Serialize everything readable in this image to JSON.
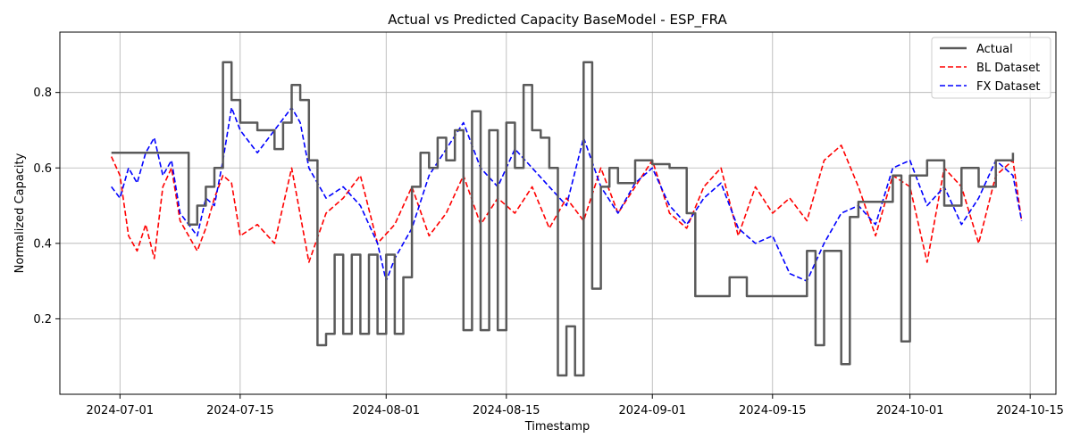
{
  "chart_data": {
    "type": "line",
    "title": "Actual vs Predicted Capacity BaseModel - ESP_FRA",
    "xlabel": "Timestamp",
    "ylabel": "Normalized Capacity",
    "x_ticks": [
      "2024-07-01",
      "2024-07-15",
      "2024-08-01",
      "2024-08-15",
      "2024-09-01",
      "2024-09-15",
      "2024-10-01",
      "2024-10-15"
    ],
    "y_ticks": [
      0.2,
      0.4,
      0.6,
      0.8
    ],
    "xlim": [
      "2024-06-24",
      "2024-10-18"
    ],
    "ylim": [
      0.0,
      0.96
    ],
    "grid": true,
    "legend_position": "top-right",
    "colors": {
      "actual": "#5a5a5a",
      "bl": "#ff0000",
      "fx": "#0000ff"
    },
    "series": [
      {
        "name": "Actual",
        "style": "solid",
        "points": [
          [
            "2024-06-30",
            0.64
          ],
          [
            "2024-07-08",
            0.64
          ],
          [
            "2024-07-09",
            0.45
          ],
          [
            "2024-07-10",
            0.5
          ],
          [
            "2024-07-11",
            0.55
          ],
          [
            "2024-07-12",
            0.6
          ],
          [
            "2024-07-13",
            0.88
          ],
          [
            "2024-07-14",
            0.78
          ],
          [
            "2024-07-15",
            0.72
          ],
          [
            "2024-07-17",
            0.7
          ],
          [
            "2024-07-19",
            0.65
          ],
          [
            "2024-07-20",
            0.72
          ],
          [
            "2024-07-21",
            0.82
          ],
          [
            "2024-07-22",
            0.78
          ],
          [
            "2024-07-23",
            0.62
          ],
          [
            "2024-07-24",
            0.13
          ],
          [
            "2024-07-25",
            0.16
          ],
          [
            "2024-07-26",
            0.37
          ],
          [
            "2024-07-27",
            0.16
          ],
          [
            "2024-07-28",
            0.37
          ],
          [
            "2024-07-29",
            0.16
          ],
          [
            "2024-07-30",
            0.37
          ],
          [
            "2024-07-31",
            0.16
          ],
          [
            "2024-08-01",
            0.37
          ],
          [
            "2024-08-02",
            0.16
          ],
          [
            "2024-08-03",
            0.31
          ],
          [
            "2024-08-04",
            0.55
          ],
          [
            "2024-08-05",
            0.64
          ],
          [
            "2024-08-06",
            0.6
          ],
          [
            "2024-08-07",
            0.68
          ],
          [
            "2024-08-08",
            0.62
          ],
          [
            "2024-08-09",
            0.7
          ],
          [
            "2024-08-10",
            0.17
          ],
          [
            "2024-08-11",
            0.75
          ],
          [
            "2024-08-12",
            0.17
          ],
          [
            "2024-08-13",
            0.7
          ],
          [
            "2024-08-14",
            0.17
          ],
          [
            "2024-08-15",
            0.72
          ],
          [
            "2024-08-16",
            0.6
          ],
          [
            "2024-08-17",
            0.82
          ],
          [
            "2024-08-18",
            0.7
          ],
          [
            "2024-08-19",
            0.68
          ],
          [
            "2024-08-20",
            0.6
          ],
          [
            "2024-08-21",
            0.05
          ],
          [
            "2024-08-22",
            0.18
          ],
          [
            "2024-08-23",
            0.05
          ],
          [
            "2024-08-24",
            0.88
          ],
          [
            "2024-08-25",
            0.28
          ],
          [
            "2024-08-26",
            0.55
          ],
          [
            "2024-08-27",
            0.6
          ],
          [
            "2024-08-28",
            0.56
          ],
          [
            "2024-08-30",
            0.62
          ],
          [
            "2024-09-01",
            0.61
          ],
          [
            "2024-09-03",
            0.6
          ],
          [
            "2024-09-05",
            0.48
          ],
          [
            "2024-09-06",
            0.26
          ],
          [
            "2024-09-09",
            0.26
          ],
          [
            "2024-09-10",
            0.31
          ],
          [
            "2024-09-12",
            0.26
          ],
          [
            "2024-09-18",
            0.26
          ],
          [
            "2024-09-19",
            0.38
          ],
          [
            "2024-09-20",
            0.13
          ],
          [
            "2024-09-21",
            0.38
          ],
          [
            "2024-09-22",
            0.38
          ],
          [
            "2024-09-23",
            0.08
          ],
          [
            "2024-09-24",
            0.47
          ],
          [
            "2024-09-25",
            0.51
          ],
          [
            "2024-09-27",
            0.51
          ],
          [
            "2024-09-29",
            0.58
          ],
          [
            "2024-09-30",
            0.14
          ],
          [
            "2024-10-01",
            0.58
          ],
          [
            "2024-10-03",
            0.62
          ],
          [
            "2024-10-05",
            0.5
          ],
          [
            "2024-10-07",
            0.6
          ],
          [
            "2024-10-09",
            0.55
          ],
          [
            "2024-10-11",
            0.62
          ],
          [
            "2024-10-13",
            0.64
          ]
        ]
      },
      {
        "name": "BL Dataset",
        "style": "dashed",
        "points": [
          [
            "2024-06-30",
            0.63
          ],
          [
            "2024-07-01",
            0.58
          ],
          [
            "2024-07-02",
            0.42
          ],
          [
            "2024-07-03",
            0.38
          ],
          [
            "2024-07-04",
            0.45
          ],
          [
            "2024-07-05",
            0.36
          ],
          [
            "2024-07-06",
            0.55
          ],
          [
            "2024-07-07",
            0.6
          ],
          [
            "2024-07-08",
            0.46
          ],
          [
            "2024-07-09",
            0.42
          ],
          [
            "2024-07-10",
            0.38
          ],
          [
            "2024-07-11",
            0.44
          ],
          [
            "2024-07-12",
            0.52
          ],
          [
            "2024-07-13",
            0.58
          ],
          [
            "2024-07-14",
            0.56
          ],
          [
            "2024-07-15",
            0.42
          ],
          [
            "2024-07-17",
            0.45
          ],
          [
            "2024-07-19",
            0.4
          ],
          [
            "2024-07-21",
            0.6
          ],
          [
            "2024-07-23",
            0.35
          ],
          [
            "2024-07-25",
            0.48
          ],
          [
            "2024-07-27",
            0.52
          ],
          [
            "2024-07-29",
            0.58
          ],
          [
            "2024-07-31",
            0.4
          ],
          [
            "2024-08-02",
            0.45
          ],
          [
            "2024-08-04",
            0.55
          ],
          [
            "2024-08-06",
            0.42
          ],
          [
            "2024-08-08",
            0.48
          ],
          [
            "2024-08-10",
            0.58
          ],
          [
            "2024-08-12",
            0.45
          ],
          [
            "2024-08-14",
            0.52
          ],
          [
            "2024-08-16",
            0.48
          ],
          [
            "2024-08-18",
            0.55
          ],
          [
            "2024-08-20",
            0.44
          ],
          [
            "2024-08-22",
            0.52
          ],
          [
            "2024-08-24",
            0.46
          ],
          [
            "2024-08-26",
            0.6
          ],
          [
            "2024-08-28",
            0.48
          ],
          [
            "2024-08-30",
            0.55
          ],
          [
            "2024-09-01",
            0.62
          ],
          [
            "2024-09-03",
            0.48
          ],
          [
            "2024-09-05",
            0.44
          ],
          [
            "2024-09-07",
            0.55
          ],
          [
            "2024-09-09",
            0.6
          ],
          [
            "2024-09-11",
            0.42
          ],
          [
            "2024-09-13",
            0.55
          ],
          [
            "2024-09-15",
            0.48
          ],
          [
            "2024-09-17",
            0.52
          ],
          [
            "2024-09-19",
            0.46
          ],
          [
            "2024-09-21",
            0.62
          ],
          [
            "2024-09-23",
            0.66
          ],
          [
            "2024-09-25",
            0.55
          ],
          [
            "2024-09-27",
            0.42
          ],
          [
            "2024-09-29",
            0.58
          ],
          [
            "2024-10-01",
            0.55
          ],
          [
            "2024-10-03",
            0.35
          ],
          [
            "2024-10-05",
            0.6
          ],
          [
            "2024-10-07",
            0.55
          ],
          [
            "2024-10-09",
            0.4
          ],
          [
            "2024-10-11",
            0.58
          ],
          [
            "2024-10-13",
            0.62
          ],
          [
            "2024-10-14",
            0.46
          ]
        ]
      },
      {
        "name": "FX Dataset",
        "style": "dashed",
        "points": [
          [
            "2024-06-30",
            0.55
          ],
          [
            "2024-07-01",
            0.52
          ],
          [
            "2024-07-02",
            0.6
          ],
          [
            "2024-07-03",
            0.56
          ],
          [
            "2024-07-04",
            0.64
          ],
          [
            "2024-07-05",
            0.68
          ],
          [
            "2024-07-06",
            0.58
          ],
          [
            "2024-07-07",
            0.62
          ],
          [
            "2024-07-08",
            0.48
          ],
          [
            "2024-07-09",
            0.45
          ],
          [
            "2024-07-10",
            0.42
          ],
          [
            "2024-07-11",
            0.52
          ],
          [
            "2024-07-12",
            0.5
          ],
          [
            "2024-07-13",
            0.62
          ],
          [
            "2024-07-14",
            0.76
          ],
          [
            "2024-07-15",
            0.7
          ],
          [
            "2024-07-17",
            0.64
          ],
          [
            "2024-07-19",
            0.7
          ],
          [
            "2024-07-21",
            0.76
          ],
          [
            "2024-07-22",
            0.72
          ],
          [
            "2024-07-23",
            0.6
          ],
          [
            "2024-07-25",
            0.52
          ],
          [
            "2024-07-27",
            0.55
          ],
          [
            "2024-07-29",
            0.5
          ],
          [
            "2024-07-31",
            0.4
          ],
          [
            "2024-08-01",
            0.3
          ],
          [
            "2024-08-02",
            0.36
          ],
          [
            "2024-08-04",
            0.44
          ],
          [
            "2024-08-06",
            0.58
          ],
          [
            "2024-08-08",
            0.65
          ],
          [
            "2024-08-10",
            0.72
          ],
          [
            "2024-08-12",
            0.6
          ],
          [
            "2024-08-14",
            0.55
          ],
          [
            "2024-08-16",
            0.65
          ],
          [
            "2024-08-18",
            0.6
          ],
          [
            "2024-08-20",
            0.55
          ],
          [
            "2024-08-22",
            0.5
          ],
          [
            "2024-08-24",
            0.68
          ],
          [
            "2024-08-26",
            0.55
          ],
          [
            "2024-08-28",
            0.48
          ],
          [
            "2024-08-30",
            0.56
          ],
          [
            "2024-09-01",
            0.6
          ],
          [
            "2024-09-03",
            0.5
          ],
          [
            "2024-09-05",
            0.45
          ],
          [
            "2024-09-07",
            0.52
          ],
          [
            "2024-09-09",
            0.56
          ],
          [
            "2024-09-11",
            0.44
          ],
          [
            "2024-09-13",
            0.4
          ],
          [
            "2024-09-15",
            0.42
          ],
          [
            "2024-09-17",
            0.32
          ],
          [
            "2024-09-19",
            0.3
          ],
          [
            "2024-09-21",
            0.4
          ],
          [
            "2024-09-23",
            0.48
          ],
          [
            "2024-09-25",
            0.5
          ],
          [
            "2024-09-27",
            0.45
          ],
          [
            "2024-09-29",
            0.6
          ],
          [
            "2024-10-01",
            0.62
          ],
          [
            "2024-10-03",
            0.5
          ],
          [
            "2024-10-05",
            0.55
          ],
          [
            "2024-10-07",
            0.45
          ],
          [
            "2024-10-09",
            0.52
          ],
          [
            "2024-10-11",
            0.62
          ],
          [
            "2024-10-13",
            0.58
          ],
          [
            "2024-10-14",
            0.46
          ]
        ]
      }
    ]
  }
}
